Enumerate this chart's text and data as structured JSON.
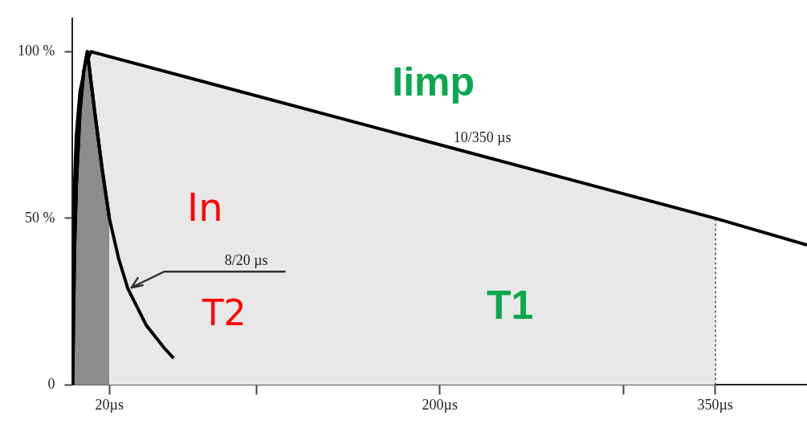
{
  "chart_data": {
    "type": "line",
    "xlim": [
      0,
      400
    ],
    "ylim": [
      0,
      110
    ],
    "xticks": [
      {
        "value": 20,
        "label": "20µs"
      },
      {
        "value": 100,
        "label": null
      },
      {
        "value": 200,
        "label": "200µs"
      },
      {
        "value": 300,
        "label": null
      },
      {
        "value": 350,
        "label": "350µs"
      }
    ],
    "yticks": [
      0,
      {
        "value": 50,
        "label": "50 %"
      },
      {
        "value": 100,
        "label": "100 %"
      }
    ],
    "grid": false,
    "legend": false,
    "marker": "none",
    "series": [
      {
        "name": "10/350 µs",
        "type": "area",
        "color": "#e8e8e8",
        "x": [
          0,
          0.5,
          1,
          2,
          4,
          7,
          10,
          350
        ],
        "values": [
          0,
          40,
          60,
          75,
          88,
          96,
          100,
          50
        ]
      },
      {
        "type": "line",
        "color": "#000000",
        "x": [
          350,
          400
        ],
        "values": [
          50,
          42
        ]
      },
      {
        "name": "8/20 µs",
        "type": "line",
        "color": "#000000",
        "x": [
          0,
          1,
          2,
          4,
          6,
          8,
          12,
          16,
          20,
          25,
          30,
          40,
          50,
          55
        ],
        "values": [
          0,
          40,
          60,
          82,
          94,
          100,
          82,
          65,
          50,
          38,
          29,
          18,
          11,
          8
        ]
      },
      {
        "type": "area",
        "color": "#8c8c8c",
        "x": [
          0,
          1,
          2,
          4,
          6,
          8,
          12,
          16,
          20
        ],
        "values": [
          0,
          40,
          60,
          82,
          94,
          100,
          82,
          65,
          50
        ]
      }
    ],
    "ref_lines": [
      {
        "axis": "y",
        "value": 50,
        "line_style": "dotted"
      },
      {
        "axis": "x",
        "value": 350,
        "line_style": "dotted"
      }
    ],
    "annotations": [
      "Iimp",
      "In",
      {
        "text": "T2",
        "x": 30,
        "y": 29
      },
      "T1"
    ]
  }
}
